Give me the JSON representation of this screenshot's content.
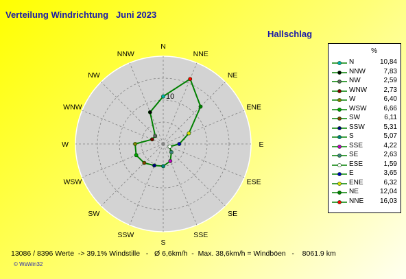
{
  "header": {
    "title": "Verteilung Windrichtung   Juni 2023",
    "location": "Hallschlag"
  },
  "legend": {
    "unit": "%"
  },
  "footer": {
    "summary": "13086 / 8396 Werte  -> 39.1% Windstille   -   Ø 6,6km/h  -  Max. 38,6km/h = Windböen   -    8061.9 km",
    "credit": "© WsWin32"
  },
  "colors": {
    "line": "#008000",
    "dial": "#d3d3d3",
    "grid": "#808080"
  },
  "chart_data": {
    "type": "radar",
    "scale": {
      "max": 20,
      "ring_step": 5,
      "label": "10"
    },
    "directions": [
      "N",
      "NNE",
      "NE",
      "ENE",
      "E",
      "ESE",
      "SE",
      "SSE",
      "S",
      "SSW",
      "SW",
      "WSW",
      "W",
      "WNW",
      "NW",
      "NNW"
    ],
    "values": {
      "N": 10.84,
      "NNE": 16.03,
      "NE": 12.04,
      "ENE": 6.32,
      "E": 3.65,
      "ESE": 1.59,
      "SE": 2.63,
      "SSE": 4.22,
      "S": 5.07,
      "SSW": 5.31,
      "SW": 6.11,
      "WSW": 6.66,
      "W": 6.4,
      "WNW": 2.73,
      "NW": 2.59,
      "NNW": 7.83
    },
    "legend_order": [
      "N",
      "NNW",
      "NW",
      "WNW",
      "W",
      "WSW",
      "SW",
      "SSW",
      "S",
      "SSE",
      "SE",
      "ESE",
      "E",
      "ENE",
      "NE",
      "NNE"
    ],
    "legend_values": [
      "10,84",
      "7,83",
      "2,59",
      "2,73",
      "6,40",
      "6,66",
      "6,11",
      "5,31",
      "5,07",
      "4,22",
      "2,63",
      "1,59",
      "3,65",
      "6,32",
      "12,04",
      "16,03"
    ],
    "marker_colors": {
      "N": "#00b0b0",
      "NNW": "#000000",
      "NW": "#606060",
      "WNW": "#800000",
      "W": "#808000",
      "WSW": "#00a000",
      "SW": "#804000",
      "SSW": "#000080",
      "S": "#008080",
      "SSE": "#c000c0",
      "SE": "#408080",
      "ESE": "#ffffff",
      "E": "#0000c0",
      "ENE": "#e0e000",
      "NE": "#008000",
      "NNE": "#ff0000"
    }
  }
}
